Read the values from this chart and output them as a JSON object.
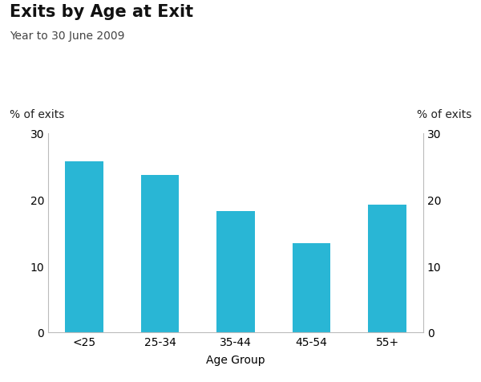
{
  "title": "Exits by Age at Exit",
  "subtitle": "Year to 30 June 2009",
  "categories": [
    "<25",
    "25-34",
    "35-44",
    "45-54",
    "55+"
  ],
  "values": [
    25.8,
    23.7,
    18.3,
    13.4,
    19.2
  ],
  "bar_color": "#29b6d5",
  "ylabel_left": "% of exits",
  "ylabel_right": "% of exits",
  "xlabel": "Age Group",
  "ylim": [
    0,
    30
  ],
  "yticks": [
    0,
    10,
    20,
    30
  ],
  "background_color": "#ffffff",
  "title_fontsize": 15,
  "subtitle_fontsize": 10,
  "axis_label_fontsize": 10,
  "tick_fontsize": 10,
  "bar_width": 0.5
}
